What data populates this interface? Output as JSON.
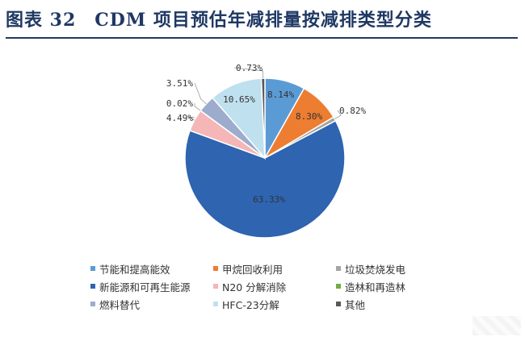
{
  "title": "图表 32　CDM 项目预估年减排量按减排类型分类",
  "chart_data": {
    "type": "pie",
    "title": "图表 32　CDM 项目预估年减排量按减排类型分类",
    "start_angle": "12 o'clock",
    "direction": "clockwise",
    "slices": [
      {
        "name": "节能和提高能效",
        "value": 8.14,
        "label": "8.14%",
        "color": "#5b9bd5"
      },
      {
        "name": "甲烷回收利用",
        "value": 8.3,
        "label": "8.30%",
        "color": "#ed7d31"
      },
      {
        "name": "垃圾焚烧发电",
        "value": 0.82,
        "label": "0.82%",
        "color": "#a5a5a5"
      },
      {
        "name": "新能源和可再生能源",
        "value": 63.33,
        "label": "63.33%",
        "color": "#2e64b0"
      },
      {
        "name": "N20 分解消除",
        "value": 4.49,
        "label": "4.49%",
        "color": "#f4b6b6"
      },
      {
        "name": "造林和再造林",
        "value": 0.02,
        "label": "0.02%",
        "color": "#70ad47"
      },
      {
        "name": "燃料替代",
        "value": 3.51,
        "label": "3.51%",
        "color": "#9dabcd"
      },
      {
        "name": "HFC-23分解",
        "value": 10.65,
        "label": "10.65%",
        "color": "#bfe0ee"
      },
      {
        "name": "其他",
        "value": 0.73,
        "label": "0.73%",
        "color": "#595959"
      }
    ],
    "legend": {
      "placement": "bottom",
      "items": [
        "节能和提高能效",
        "甲烷回收利用",
        "垃圾焚烧发电",
        "新能源和可再生能源",
        "N20 分解消除",
        "造林和再造林",
        "燃料替代",
        "HFC-23分解",
        "其他"
      ]
    }
  }
}
